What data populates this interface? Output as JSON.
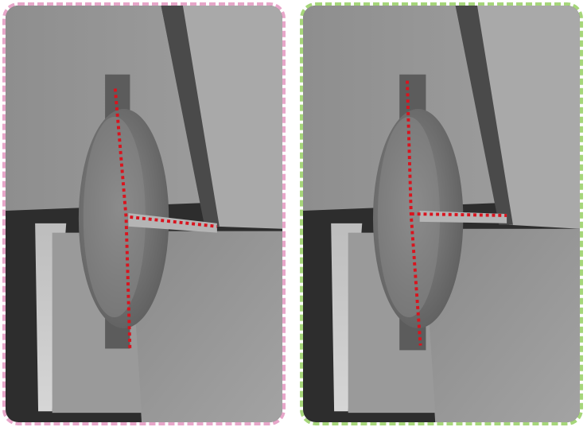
{
  "panels": [
    {
      "id": "left",
      "border_color": "#e7a6c9",
      "trace_color": "#d9141e",
      "variant": "angled-trace"
    },
    {
      "id": "right",
      "border_color": "#a6d67a",
      "trace_color": "#d9141e",
      "variant": "straight-trace"
    }
  ],
  "colors": {
    "substrate_light": "#a7a7a7",
    "substrate_mid": "#8f8f8f",
    "shadow_dark": "#2d2d2d",
    "trench_bright": "#c9c9c9",
    "membrane": "#7b7b7b"
  }
}
